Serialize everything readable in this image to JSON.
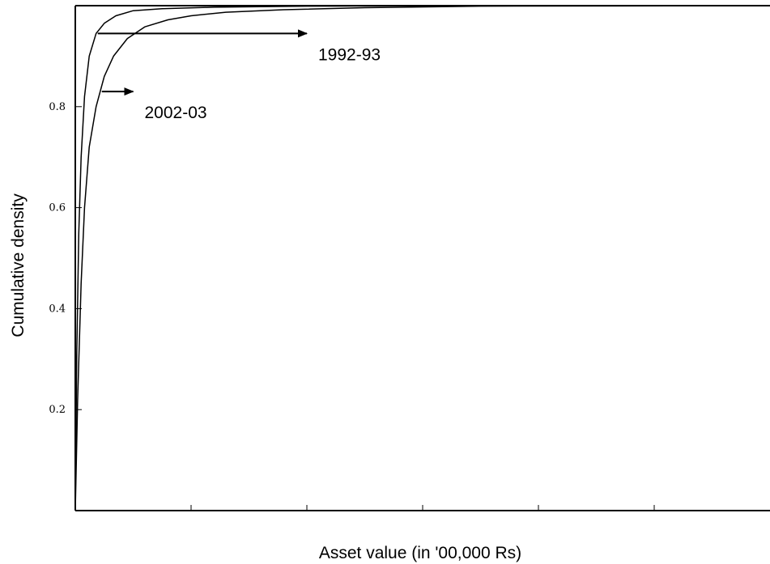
{
  "chart_data": {
    "type": "line",
    "title": "",
    "xlabel": "Asset value (in '00,000 Rs)",
    "ylabel": "Cumulative density",
    "ylim": [
      0.0,
      1.0
    ],
    "yticks": [
      0.2,
      0.4,
      0.6,
      0.8
    ],
    "ytick_labels": [
      "0.2",
      "0.4",
      "0.6",
      "0.8"
    ],
    "xlim": [
      0,
      6
    ],
    "xticks": [
      1,
      2,
      3,
      4,
      5
    ],
    "xtick_labels": [],
    "grid": false,
    "legend": "none",
    "series": [
      {
        "name": "1992-93",
        "x": [
          0,
          0.012,
          0.03,
          0.05,
          0.08,
          0.12,
          0.18,
          0.25,
          0.35,
          0.5,
          0.75,
          1.2,
          2.0,
          3.5,
          6.0
        ],
        "y": [
          0.0,
          0.3,
          0.55,
          0.7,
          0.82,
          0.9,
          0.945,
          0.965,
          0.98,
          0.99,
          0.994,
          0.997,
          0.999,
          1.0,
          1.0
        ]
      },
      {
        "name": "2002-03",
        "x": [
          0,
          0.02,
          0.05,
          0.08,
          0.12,
          0.18,
          0.25,
          0.33,
          0.45,
          0.6,
          0.8,
          1.0,
          1.3,
          1.8,
          2.5,
          3.5,
          6.0
        ],
        "y": [
          0.0,
          0.22,
          0.45,
          0.6,
          0.72,
          0.8,
          0.86,
          0.9,
          0.935,
          0.958,
          0.972,
          0.98,
          0.987,
          0.992,
          0.996,
          0.999,
          1.0
        ]
      }
    ],
    "annotations": [
      {
        "text": "1992-93",
        "series": "1992-93",
        "at_y": 0.945,
        "arrow_to_x": 2.0
      },
      {
        "text": "2002-03",
        "series": "2002-03",
        "at_y": 0.83,
        "arrow_to_x": 0.5
      }
    ]
  }
}
